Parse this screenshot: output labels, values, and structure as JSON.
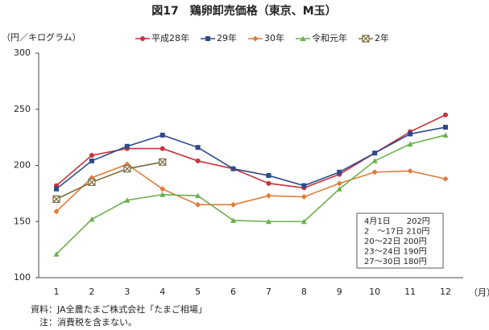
{
  "chart_data": {
    "type": "line",
    "title": "図17　鶏卵卸売価格（東京、M玉）",
    "y_label": "（円／キログラム）",
    "x_label": "（月）",
    "categories": [
      "1",
      "2",
      "3",
      "4",
      "5",
      "6",
      "7",
      "8",
      "9",
      "10",
      "11",
      "12"
    ],
    "ylim": [
      100,
      300
    ],
    "yticks": [
      100,
      150,
      200,
      250,
      300
    ],
    "grid": false,
    "series": [
      {
        "name": "平成28年",
        "color": "#c8323c",
        "marker": "circle",
        "values": [
          182,
          209,
          215,
          215,
          204,
          197,
          184,
          180,
          192,
          211,
          230,
          245
        ]
      },
      {
        "name": "29年",
        "color": "#2e4a8c",
        "marker": "square",
        "values": [
          179,
          204,
          217,
          227,
          216,
          197,
          191,
          182,
          194,
          211,
          228,
          234
        ]
      },
      {
        "name": "30年",
        "color": "#e07b39",
        "marker": "diamond",
        "values": [
          159,
          189,
          201,
          179,
          165,
          165,
          173,
          172,
          184,
          194,
          195,
          188
        ]
      },
      {
        "name": "令和元年",
        "color": "#6ab04c",
        "marker": "triangle",
        "values": [
          121,
          152,
          169,
          174,
          173,
          151,
          150,
          150,
          179,
          204,
          219,
          227
        ]
      },
      {
        "name": "2年",
        "color": "#7a6a3a",
        "marker": "xbox",
        "values": [
          170,
          185,
          197,
          203,
          null,
          null,
          null,
          null,
          null,
          null,
          null,
          null
        ]
      }
    ],
    "annotation": [
      "4月1日　　202円",
      "2　～17日 210円",
      "20～22日 200円",
      "23～24日 190円",
      "27～30日 180円"
    ],
    "footnotes": [
      "資料：JA全農たまご株式会社「たまご相場」",
      "　注：消費税を含まない。"
    ]
  }
}
